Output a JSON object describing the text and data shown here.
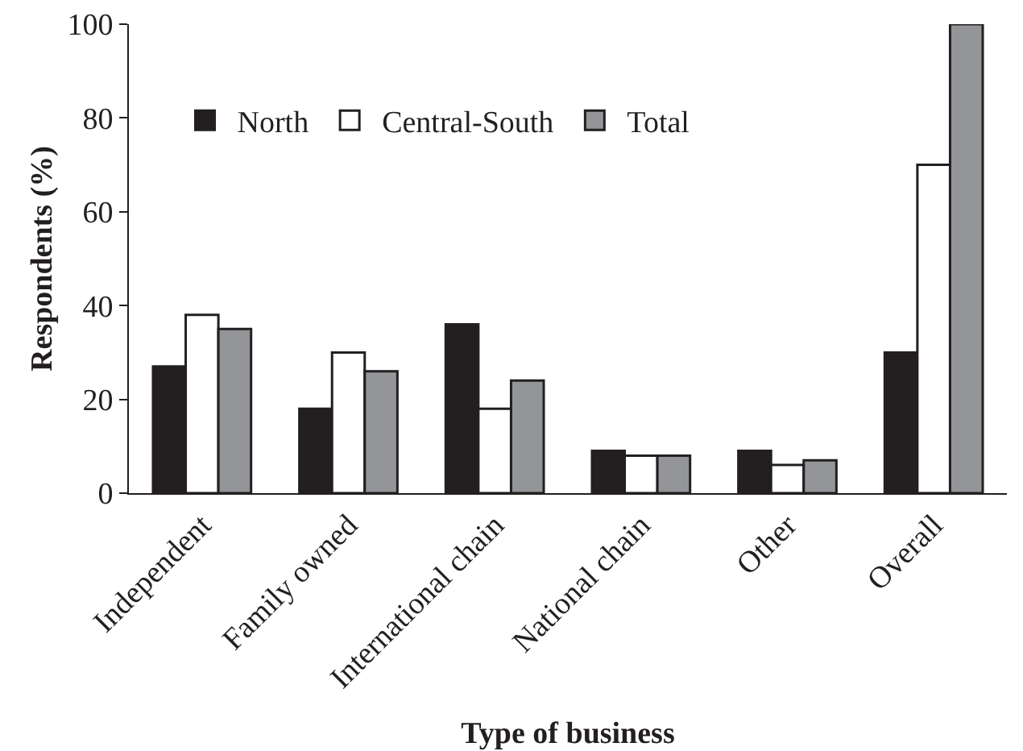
{
  "chart_data": {
    "type": "bar",
    "xlabel": "Type of business",
    "ylabel": "Respondents (%)",
    "categories": [
      "Independent",
      "Family owned",
      "International chain",
      "National chain",
      "Other",
      "Overall"
    ],
    "series": [
      {
        "name": "North",
        "color": "#231f20",
        "values": [
          27,
          18,
          36,
          9,
          9,
          30
        ]
      },
      {
        "name": "Central-South",
        "color": "#ffffff",
        "values": [
          38,
          30,
          18,
          8,
          6,
          70
        ]
      },
      {
        "name": "Total",
        "color": "#939598",
        "values": [
          35,
          26,
          24,
          8,
          7,
          100
        ]
      }
    ],
    "ylim": [
      0,
      100
    ],
    "yticks": [
      0,
      20,
      40,
      60,
      80,
      100
    ],
    "grid": false,
    "legend": "top left"
  }
}
